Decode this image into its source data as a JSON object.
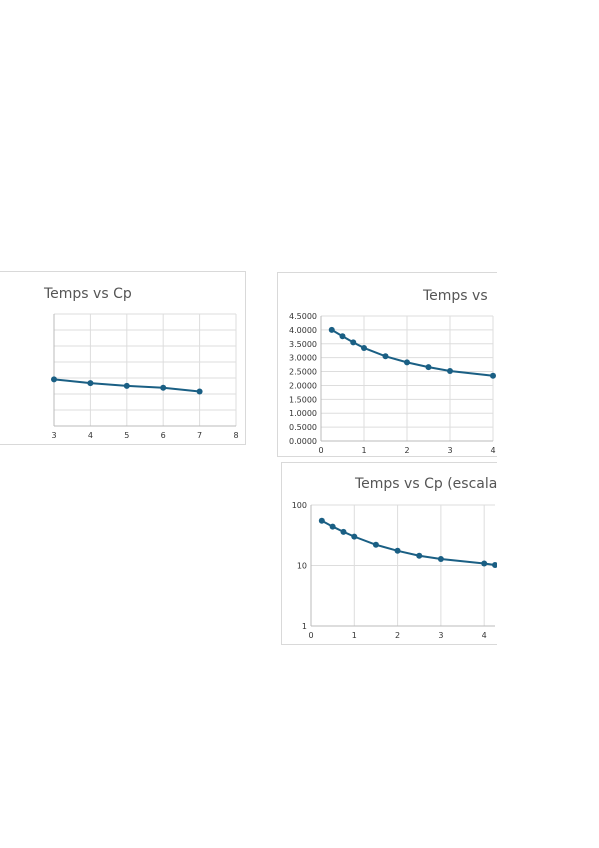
{
  "chart_data": [
    {
      "id": "chart-left",
      "type": "line",
      "title": "Temps vs Cp",
      "x_ticks": [
        "3",
        "4",
        "5",
        "6",
        "7",
        "8"
      ],
      "x": [
        3,
        4,
        5,
        6,
        7
      ],
      "series": [
        {
          "values": [
            2.5,
            2.3,
            2.15,
            2.05,
            1.85
          ]
        }
      ],
      "xlim": [
        3,
        8
      ],
      "ylim": [
        0,
        6.0
      ],
      "grid": true,
      "color": "#1a5f84"
    },
    {
      "id": "chart-right",
      "type": "line",
      "title": "Temps vs",
      "x_ticks": [
        "0",
        "1",
        "2",
        "3",
        "4"
      ],
      "y_ticks": [
        "0.0000",
        "0.5000",
        "1.0000",
        "1.5000",
        "2.0000",
        "2.5000",
        "3.0000",
        "3.5000",
        "4.0000",
        "4.5000"
      ],
      "x": [
        0.25,
        0.5,
        0.75,
        1.0,
        1.5,
        2.0,
        2.5,
        3.0,
        4.0
      ],
      "series": [
        {
          "values": [
            4.0,
            3.77,
            3.55,
            3.35,
            3.05,
            2.83,
            2.66,
            2.52,
            2.35
          ]
        }
      ],
      "xlim": [
        0,
        4
      ],
      "ylim": [
        0,
        4.5
      ],
      "grid": true,
      "color": "#1a5f84"
    },
    {
      "id": "chart-bottom",
      "type": "line",
      "title": "Temps vs Cp (escala",
      "x_ticks": [
        "0",
        "1",
        "2",
        "3",
        "4"
      ],
      "y_ticks": [
        "1",
        "10",
        "100"
      ],
      "x": [
        0.25,
        0.5,
        0.75,
        1.0,
        1.5,
        2.0,
        2.5,
        3.0,
        4.0,
        4.25
      ],
      "series": [
        {
          "values": [
            55,
            44,
            36,
            30,
            22,
            17.5,
            14.5,
            12.8,
            10.8,
            10.2
          ]
        }
      ],
      "xlim": [
        0,
        4.25
      ],
      "ylim": [
        1,
        100
      ],
      "y_scale": "log",
      "grid": true,
      "color": "#1a5f84"
    }
  ]
}
